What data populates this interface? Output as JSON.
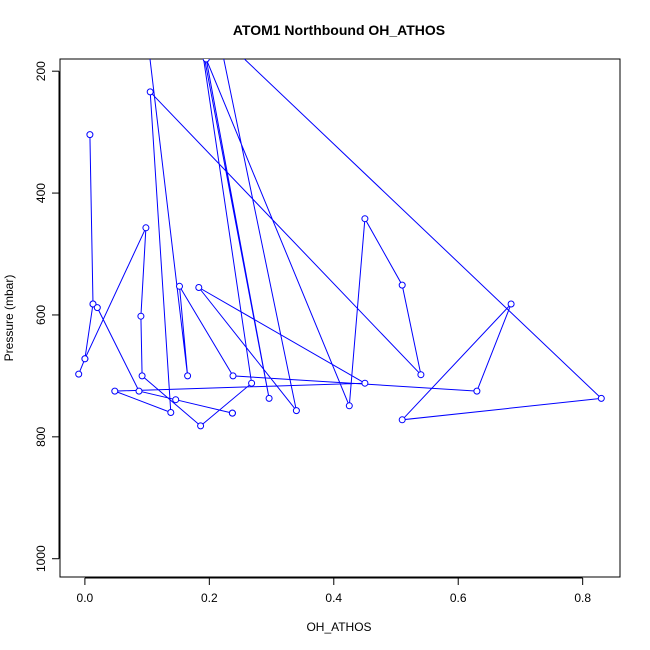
{
  "chart_data": {
    "type": "line",
    "title": "ATOM1 Northbound OH_ATHOS",
    "xlabel": "OH_ATHOS",
    "ylabel": "Pressure (mbar)",
    "xlim": [
      -0.04,
      0.86
    ],
    "ylim": [
      1030,
      180
    ],
    "y_reversed": true,
    "grid": false,
    "x_ticks": [
      0.0,
      0.2,
      0.4,
      0.6,
      0.8
    ],
    "x_tick_labels": [
      "0.0",
      "0.2",
      "0.4",
      "0.6",
      "0.8"
    ],
    "y_ticks": [
      200,
      400,
      600,
      800,
      1000
    ],
    "y_tick_labels": [
      "200",
      "400",
      "600",
      "800",
      "1000"
    ],
    "color": "#0000ff",
    "series": [
      {
        "points": [
          [
            0.1,
            140
          ],
          [
            0.165,
            700
          ],
          [
            0.152,
            553
          ],
          [
            0.238,
            700
          ],
          [
            0.63,
            725
          ],
          [
            0.685,
            582
          ],
          [
            0.51,
            772
          ],
          [
            0.83,
            737
          ],
          [
            0.215,
            140
          ],
          [
            0.34,
            757
          ],
          [
            0.183,
            555
          ],
          [
            0.45,
            712
          ],
          [
            0.048,
            725
          ],
          [
            0.138,
            760
          ],
          [
            0.105,
            234
          ],
          [
            0.54,
            698
          ],
          [
            0.51,
            551
          ],
          [
            0.45,
            442
          ],
          [
            0.425,
            749
          ],
          [
            0.195,
            180
          ],
          [
            0.296,
            737
          ],
          [
            0.185,
            140
          ],
          [
            0.268,
            712
          ],
          [
            0.186,
            782
          ],
          [
            0.092,
            700
          ],
          [
            0.09,
            602
          ],
          [
            0.098,
            457
          ],
          [
            0.0,
            672
          ],
          [
            -0.01,
            697
          ],
          [
            0.0,
            672
          ],
          [
            0.013,
            582
          ],
          [
            0.008,
            304
          ],
          [
            0.013,
            582
          ],
          [
            0.02,
            588
          ],
          [
            0.087,
            725
          ],
          [
            0.146,
            739
          ],
          [
            0.237,
            761
          ],
          [
            0.237,
            761
          ]
        ]
      }
    ]
  }
}
